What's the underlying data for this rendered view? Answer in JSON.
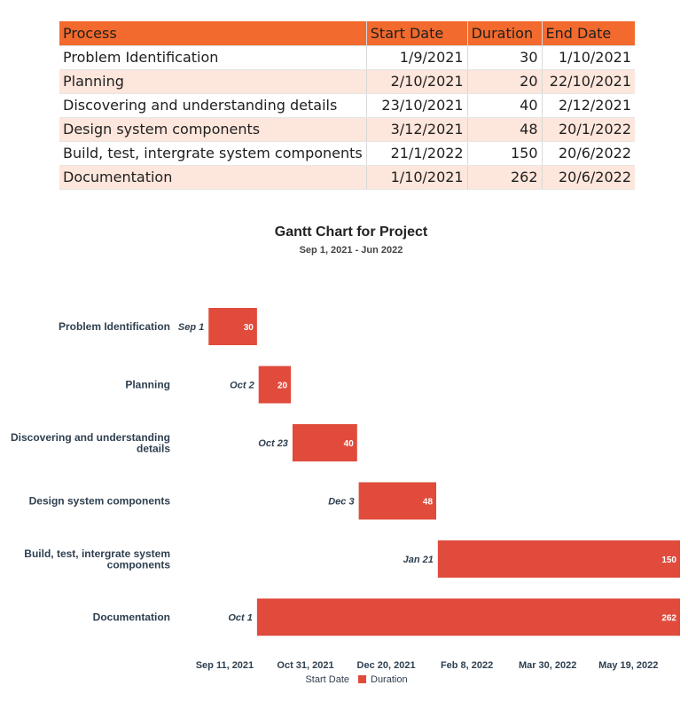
{
  "table": {
    "headers": [
      "Process",
      "Start Date",
      "Duration",
      "End Date"
    ],
    "rows": [
      [
        "Problem Identification",
        "1/9/2021",
        "30",
        "1/10/2021"
      ],
      [
        "Planning",
        "2/10/2021",
        "20",
        "22/10/2021"
      ],
      [
        "Discovering and understanding details",
        "23/10/2021",
        "40",
        "2/12/2021"
      ],
      [
        "Design system components",
        "3/12/2021",
        "48",
        "20/1/2022"
      ],
      [
        "Build, test, intergrate system components",
        "21/1/2022",
        "150",
        "20/6/2022"
      ],
      [
        "Documentation",
        "1/10/2021",
        "262",
        "20/6/2022"
      ]
    ]
  },
  "colors": {
    "header": "#f26a2d",
    "row_alt": "#fde6dc",
    "bar": "#e04b3c"
  },
  "chart_data": {
    "type": "bar",
    "orientation": "horizontal",
    "stacked": true,
    "title": "Gantt Chart for Project",
    "subtitle": "Sep 1, 2021 - Jun 2022",
    "categories": [
      [
        "Problem Identification"
      ],
      [
        "Planning"
      ],
      [
        "Discovering and understanding",
        "details"
      ],
      [
        "Design system components"
      ],
      [
        "Build, test, intergrate system",
        "components"
      ],
      [
        "Documentation"
      ]
    ],
    "start_dates": [
      "2021-09-01",
      "2021-10-02",
      "2021-10-23",
      "2021-12-03",
      "2022-01-21",
      "2021-10-01"
    ],
    "start_labels": [
      "Sep 1",
      "Oct 2",
      "Oct 23",
      "Dec 3",
      "Jan 21",
      "Oct 1"
    ],
    "series": [
      {
        "name": "Start Date",
        "color": "none"
      },
      {
        "name": "Duration",
        "color": "#e04b3c",
        "values": [
          30,
          20,
          40,
          48,
          150,
          262
        ]
      }
    ],
    "x_ticks": [
      "2021-09-11",
      "2021-10-31",
      "2021-12-20",
      "2022-02-08",
      "2022-03-30",
      "2022-05-19"
    ],
    "x_tick_labels": [
      "Sep 11, 2021",
      "Oct 31, 2021",
      "Dec 20, 2021",
      "Feb 8, 2022",
      "Mar 30, 2022",
      "May 19, 2022"
    ],
    "xlim": [
      "2021-08-11",
      "2022-06-20"
    ],
    "legend": "bottom",
    "grid": false
  }
}
